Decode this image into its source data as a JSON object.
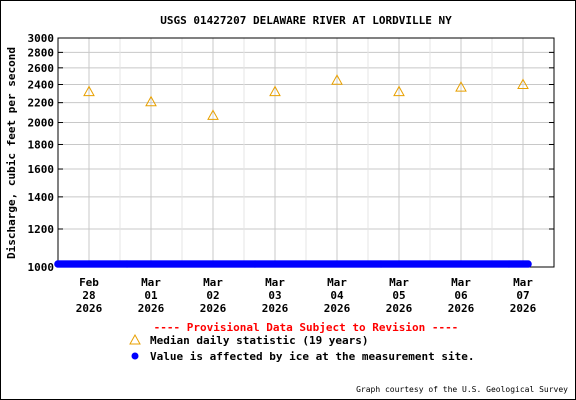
{
  "chart_data": {
    "type": "scatter",
    "title": "USGS 01427207 DELAWARE RIVER AT LORDVILLE NY",
    "ylabel": "Discharge, cubic feet per second",
    "xlabel": "",
    "y_scale": "log",
    "ylim": [
      1000,
      3000
    ],
    "y_ticks": [
      {
        "value": 1000,
        "label": "1000"
      },
      {
        "value": 1200,
        "label": "1200"
      },
      {
        "value": 1400,
        "label": "1400"
      },
      {
        "value": 1600,
        "label": "1600"
      },
      {
        "value": 1800,
        "label": "1800"
      },
      {
        "value": 2000,
        "label": "2000"
      },
      {
        "value": 2200,
        "label": "2200"
      },
      {
        "value": 2400,
        "label": "2400"
      },
      {
        "value": 2600,
        "label": "2600"
      },
      {
        "value": 2800,
        "label": "2800"
      },
      {
        "value": 3000,
        "label": "3000"
      }
    ],
    "x_ticks": [
      {
        "line1": "Feb",
        "line2": "28",
        "line3": "2026"
      },
      {
        "line1": "Mar",
        "line2": "01",
        "line3": "2026"
      },
      {
        "line1": "Mar",
        "line2": "02",
        "line3": "2026"
      },
      {
        "line1": "Mar",
        "line2": "03",
        "line3": "2026"
      },
      {
        "line1": "Mar",
        "line2": "04",
        "line3": "2026"
      },
      {
        "line1": "Mar",
        "line2": "05",
        "line3": "2026"
      },
      {
        "line1": "Mar",
        "line2": "06",
        "line3": "2026"
      },
      {
        "line1": "Mar",
        "line2": "07",
        "line3": "2026"
      }
    ],
    "grid": true,
    "series": [
      {
        "name": "Median daily statistic (19 years)",
        "marker": "triangle",
        "color": "#e8a000",
        "x": [
          "2026-02-28",
          "2026-03-01",
          "2026-03-02",
          "2026-03-03",
          "2026-03-04",
          "2026-03-05",
          "2026-03-06",
          "2026-03-07"
        ],
        "values": [
          2320,
          2210,
          2070,
          2320,
          2450,
          2320,
          2370,
          2400
        ]
      },
      {
        "name": "Value is affected by ice at the measurement site.",
        "marker": "dot",
        "color": "#0000ff",
        "x_range": [
          "2026-02-28",
          "2026-03-07"
        ],
        "value": 1000
      }
    ],
    "provisional_note": "---- Provisional Data Subject to Revision ----",
    "provisional_color": "#ff0000",
    "credit": "Graph courtesy of the U.S. Geological Survey"
  }
}
